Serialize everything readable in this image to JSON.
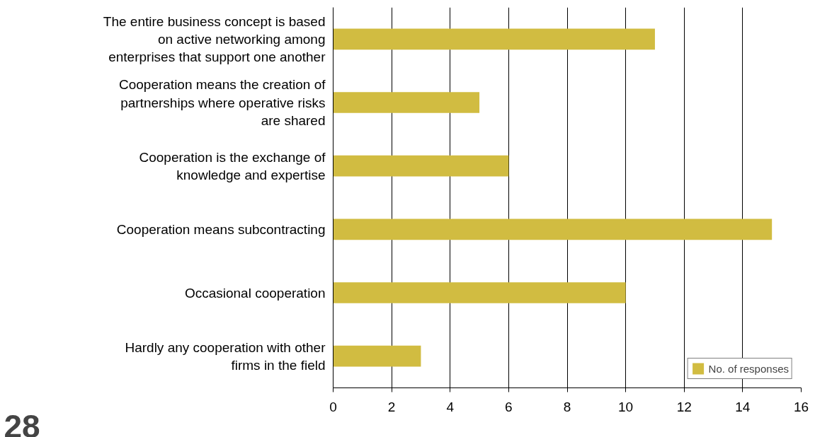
{
  "chart_data": {
    "type": "bar",
    "orientation": "horizontal",
    "categories": [
      "The entire business concept is based on active networking among enterprises that support one another",
      "Cooperation means the creation of partnerships where operative risks are shared",
      "Cooperation is the exchange of knowledge and expertise",
      "Cooperation means subcontracting",
      "Occasional cooperation",
      "Hardly any cooperation with other firms in the field"
    ],
    "series": [
      {
        "name": "No. of responses",
        "color": "#d1bc41",
        "values": [
          11,
          5,
          6,
          15,
          10,
          3
        ]
      }
    ],
    "xlim": [
      0,
      16
    ],
    "xticks": [
      0,
      2,
      4,
      6,
      8,
      10,
      12,
      14,
      16
    ],
    "grid": "x",
    "legend": "bottom right",
    "annotations": [
      "28"
    ]
  }
}
